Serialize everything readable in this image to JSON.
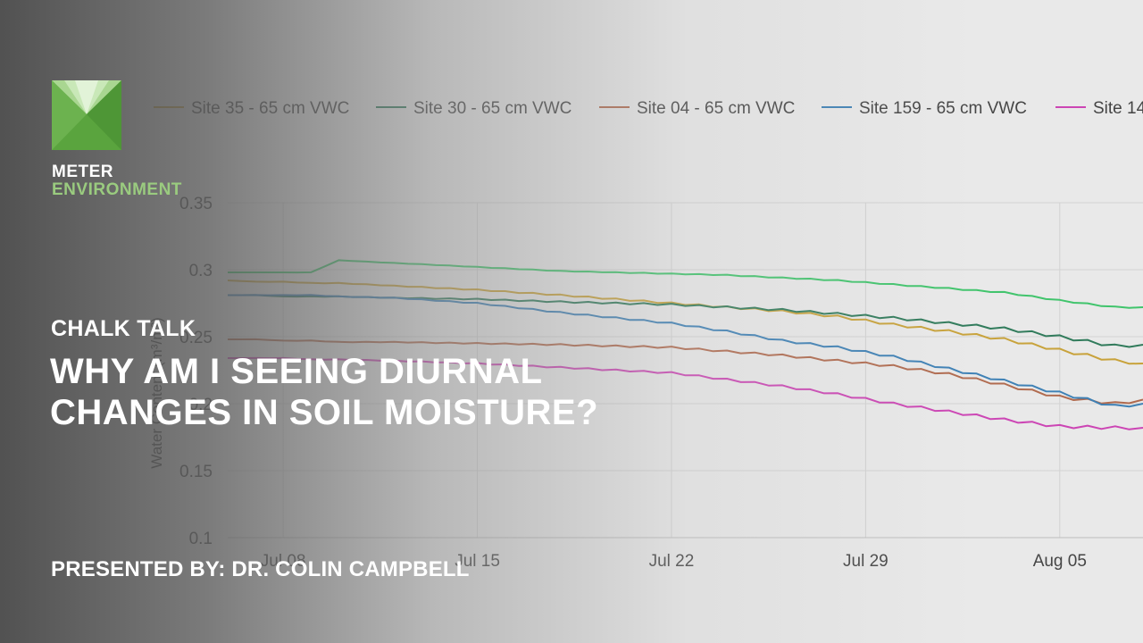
{
  "brand": {
    "line1": "METER",
    "line2": "ENVIRONMENT",
    "colors": {
      "logo_green": "#6cb24f",
      "logo_light": "#b6dba0",
      "env_text": "#9acb7f"
    }
  },
  "video": {
    "kicker": "CHALK TALK",
    "title_line1": "WHY AM I SEEING DIURNAL",
    "title_line2": "CHANGES IN SOIL MOISTURE?",
    "presenter": "PRESENTED BY: DR. COLIN CAMPBELL"
  },
  "chart_data": {
    "type": "line",
    "ylabel": "Water Content (m³/m³)",
    "ylim": [
      0.1,
      0.35
    ],
    "yticks": [
      "0.35",
      "0.3",
      "0.25",
      "0.2",
      "0.15",
      "0.1"
    ],
    "xlim": [
      "2018-07-06",
      "2018-08-08"
    ],
    "xticks": [
      {
        "date": "2018-07-08",
        "label": "Jul 08"
      },
      {
        "date": "2018-07-15",
        "label": "Jul 15"
      },
      {
        "date": "2018-07-22",
        "label": "Jul 22"
      },
      {
        "date": "2018-07-29",
        "label": "Jul 29"
      },
      {
        "date": "2018-08-05",
        "label": "Aug 05"
      }
    ],
    "grid": true,
    "legend_position": "top",
    "x": [
      "2018-07-06",
      "2018-07-07",
      "2018-07-08",
      "2018-07-09",
      "2018-07-10",
      "2018-07-12",
      "2018-07-15",
      "2018-07-18",
      "2018-07-20",
      "2018-07-22",
      "2018-07-24",
      "2018-07-26",
      "2018-07-28",
      "2018-07-30",
      "2018-08-01",
      "2018-08-03",
      "2018-08-05",
      "2018-08-07",
      "2018-08-08"
    ],
    "series": [
      {
        "name": "Site 35 - 65 cm VWC",
        "color": "#c8a23a",
        "values": [
          0.292,
          0.291,
          0.291,
          0.29,
          0.29,
          0.288,
          0.285,
          0.281,
          0.278,
          0.275,
          0.272,
          0.269,
          0.265,
          0.259,
          0.254,
          0.248,
          0.24,
          0.232,
          0.23
        ]
      },
      {
        "name": "Site 30 - 65 cm VWC",
        "color": "#2f7a5a",
        "values": [
          0.281,
          0.281,
          0.28,
          0.28,
          0.28,
          0.279,
          0.278,
          0.276,
          0.275,
          0.274,
          0.272,
          0.27,
          0.267,
          0.264,
          0.26,
          0.256,
          0.25,
          0.243,
          0.244
        ]
      },
      {
        "name": "Site 04 - 65 cm VWC",
        "color": "#b06a4e",
        "values": [
          0.248,
          0.248,
          0.247,
          0.247,
          0.246,
          0.246,
          0.245,
          0.244,
          0.243,
          0.242,
          0.239,
          0.236,
          0.232,
          0.228,
          0.222,
          0.214,
          0.205,
          0.2,
          0.203
        ]
      },
      {
        "name": "Site 159 - 65 cm VWC",
        "color": "#3d80b5",
        "values": [
          0.281,
          0.281,
          0.281,
          0.281,
          0.28,
          0.279,
          0.275,
          0.268,
          0.264,
          0.26,
          0.254,
          0.247,
          0.242,
          0.235,
          0.226,
          0.217,
          0.208,
          0.198,
          0.2
        ]
      },
      {
        "name": "Site 14",
        "color": "#cc44b4",
        "values": [
          0.234,
          0.234,
          0.234,
          0.233,
          0.233,
          0.232,
          0.23,
          0.227,
          0.225,
          0.223,
          0.218,
          0.213,
          0.207,
          0.2,
          0.194,
          0.188,
          0.183,
          0.182,
          0.182
        ]
      },
      {
        "name": "",
        "color": "#3fc46b",
        "values": [
          0.298,
          0.298,
          0.298,
          0.298,
          0.307,
          0.305,
          0.302,
          0.299,
          0.298,
          0.297,
          0.296,
          0.294,
          0.292,
          0.289,
          0.286,
          0.283,
          0.277,
          0.272,
          0.272
        ]
      }
    ]
  }
}
